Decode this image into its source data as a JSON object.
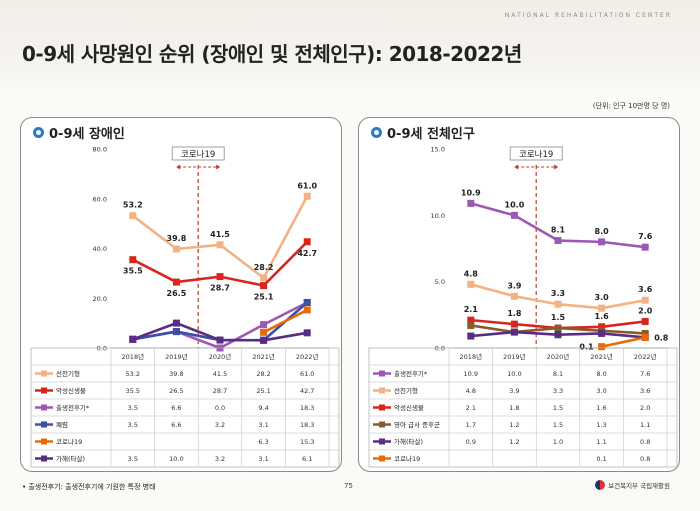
{
  "header": {
    "org_name": "NATIONAL REHABILITATION CENTER",
    "title": "0-9세 사망원인 순위 (장애인 및 전체인구): 2018-2022년",
    "unit": "(단위: 인구 10만명 당 명)"
  },
  "footer": {
    "footnote": "• 출생전후기: 출생전후기에 기원한 특정 병태",
    "page_number": "75",
    "logo_text": "보건복지부 국립재활원"
  },
  "colors": {
    "peach": "#f4b183",
    "red": "#d9261c",
    "purple": "#9b59b6",
    "navy": "#3b4fa8",
    "blue": "#2e75b6",
    "orange": "#e46c0a",
    "violet": "#5b2c83",
    "covid_marker": "#c0392b"
  },
  "chart_data": [
    {
      "type": "line",
      "title": "0-9세 장애인",
      "annotation": "코로나19",
      "categories": [
        "2018년",
        "2019년",
        "2020년",
        "2021년",
        "2022년"
      ],
      "ylim": [
        0,
        80
      ],
      "yticks": [
        "0.0",
        "20.0",
        "40.0",
        "60.0",
        "80.0"
      ],
      "series": [
        {
          "name": "선천기형",
          "color": "#f4b183",
          "values": [
            53.2,
            39.8,
            41.5,
            28.2,
            61.0
          ],
          "labels": [
            "53.2",
            "39.8",
            "41.5",
            "28.2",
            "61.0"
          ],
          "label_side": "above",
          "cells": [
            "53.2",
            "39.8",
            "41.5",
            "28.2",
            "61.0"
          ]
        },
        {
          "name": "악성신생물",
          "color": "#d9261c",
          "values": [
            35.5,
            26.5,
            28.7,
            25.1,
            42.7
          ],
          "labels": [
            "35.5",
            "26.5",
            "28.7",
            "25.1",
            "42.7"
          ],
          "label_side": "below",
          "cells": [
            "35.5",
            "26.5",
            "28.7",
            "25.1",
            "42.7"
          ]
        },
        {
          "name": "출생전후기*",
          "color": "#9b59b6",
          "values": [
            3.5,
            6.6,
            0.0,
            9.4,
            18.3
          ],
          "labels": [],
          "label_side": "",
          "cells": [
            "3.5",
            "6.6",
            "0.0",
            "9.4",
            "18.3"
          ]
        },
        {
          "name": "폐렴",
          "color": "#3b4fa8",
          "values": [
            3.5,
            6.6,
            3.2,
            3.1,
            18.3
          ],
          "labels": [],
          "label_side": "",
          "cells": [
            "3.5",
            "6.6",
            "3.2",
            "3.1",
            "18.3"
          ]
        },
        {
          "name": "코로나19",
          "color": "#e46c0a",
          "values": [
            null,
            null,
            null,
            6.3,
            15.3
          ],
          "labels": [],
          "label_side": "",
          "cells": [
            "",
            "",
            "",
            "6.3",
            "15.3"
          ]
        },
        {
          "name": "가해(타살)",
          "color": "#5b2c83",
          "values": [
            3.5,
            10.0,
            3.2,
            3.1,
            6.1
          ],
          "labels": [],
          "label_side": "",
          "cells": [
            "3.5",
            "10.0",
            "3.2",
            "3.1",
            "6.1"
          ]
        }
      ]
    },
    {
      "type": "line",
      "title": "0-9세 전체인구",
      "annotation": "코로나19",
      "categories": [
        "2018년",
        "2019년",
        "2020년",
        "2021년",
        "2022년"
      ],
      "ylim": [
        0,
        15
      ],
      "yticks": [
        "0.0",
        "5.0",
        "10.0",
        "15.0"
      ],
      "series": [
        {
          "name": "출생전후기*",
          "color": "#9b59b6",
          "values": [
            10.9,
            10.0,
            8.1,
            8.0,
            7.6
          ],
          "labels": [
            "10.9",
            "10.0",
            "8.1",
            "8.0",
            "7.6"
          ],
          "label_side": "above",
          "cells": [
            "10.9",
            "10.0",
            "8.1",
            "8.0",
            "7.6"
          ]
        },
        {
          "name": "선천기형",
          "color": "#f4b183",
          "values": [
            4.8,
            3.9,
            3.3,
            3.0,
            3.6
          ],
          "labels": [
            "4.8",
            "3.9",
            "3.3",
            "3.0",
            "3.6"
          ],
          "label_side": "above",
          "cells": [
            "4.8",
            "3.9",
            "3.3",
            "3.0",
            "3.6"
          ]
        },
        {
          "name": "악성신생물",
          "color": "#d9261c",
          "values": [
            2.1,
            1.8,
            1.5,
            1.6,
            2.0
          ],
          "labels": [
            "2.1",
            "1.8",
            "1.5",
            "1.6",
            "2.0"
          ],
          "label_side": "above",
          "cells": [
            "2.1",
            "1.8",
            "1.5",
            "1.6",
            "2.0"
          ]
        },
        {
          "name": "영아 급사 증후군",
          "color": "#8a5a2b",
          "values": [
            1.7,
            1.2,
            1.5,
            1.3,
            1.1
          ],
          "labels": [],
          "label_side": "",
          "cells": [
            "1.7",
            "1.2",
            "1.5",
            "1.3",
            "1.1"
          ]
        },
        {
          "name": "가해(타살)",
          "color": "#5b2c83",
          "values": [
            0.9,
            1.2,
            1.0,
            1.1,
            0.8
          ],
          "labels": [],
          "label_side": "",
          "cells": [
            "0.9",
            "1.2",
            "1.0",
            "1.1",
            "0.8"
          ]
        },
        {
          "name": "코로나19",
          "color": "#e46c0a",
          "values": [
            null,
            null,
            null,
            0.1,
            0.8
          ],
          "labels": [
            "",
            "",
            "",
            "0.1",
            "0.8"
          ],
          "label_side": "right",
          "cells": [
            "",
            "",
            "",
            "0.1",
            "0.8"
          ]
        }
      ]
    }
  ]
}
